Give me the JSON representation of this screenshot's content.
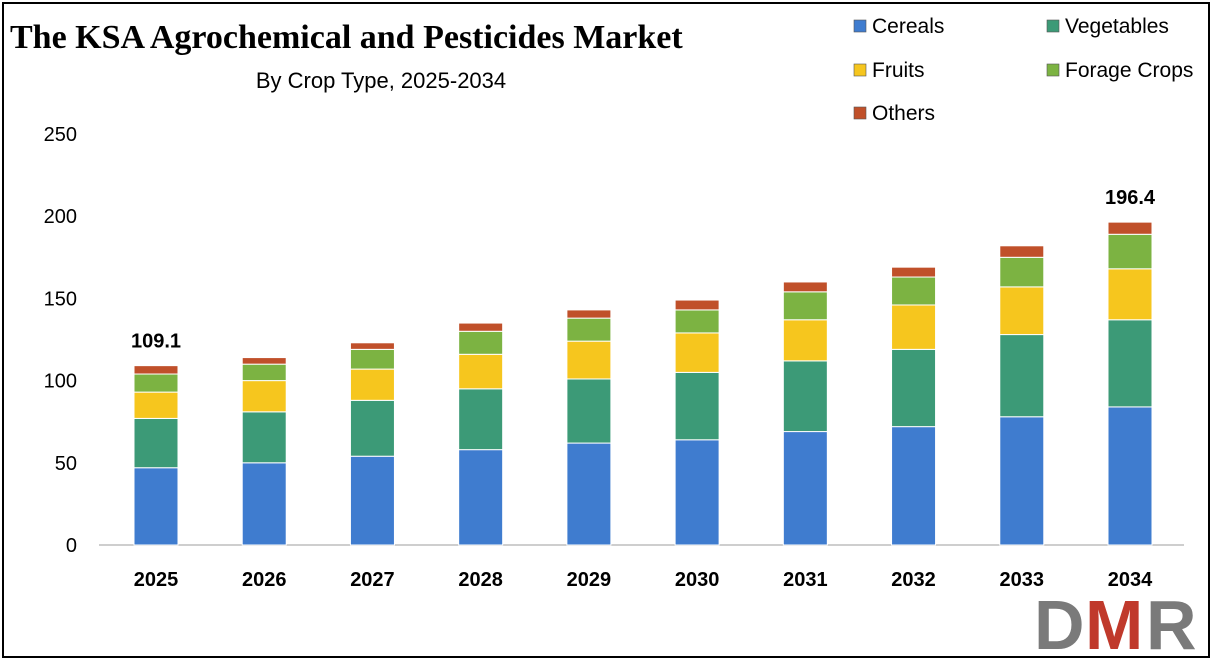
{
  "chart_data": {
    "type": "bar",
    "stacked": true,
    "title": "The KSA Agrochemical and Pesticides Market",
    "subtitle": "By Crop Type, 2025-2034",
    "xlabel": "",
    "ylabel": "",
    "ylim": [
      0,
      250
    ],
    "yticks": [
      0,
      50,
      100,
      150,
      200,
      250
    ],
    "grid": false,
    "legend_placement": "top-right",
    "categories": [
      "2025",
      "2026",
      "2027",
      "2028",
      "2029",
      "2030",
      "2031",
      "2032",
      "2033",
      "2034"
    ],
    "series": [
      {
        "name": "Cereals",
        "color": "#3f7ccf",
        "values": [
          47,
          50,
          54,
          58,
          62,
          64,
          69,
          72,
          78,
          84
        ]
      },
      {
        "name": "Vegetables",
        "color": "#3c9a77",
        "values": [
          30,
          31,
          34,
          37,
          39,
          41,
          43,
          47,
          50,
          53
        ]
      },
      {
        "name": "Fruits",
        "color": "#f6c61e",
        "values": [
          16,
          19,
          19,
          21,
          23,
          24,
          25,
          27,
          29,
          31
        ]
      },
      {
        "name": "Forage Crops",
        "color": "#7cb342",
        "values": [
          11,
          10,
          12,
          14,
          14,
          14,
          17,
          17,
          18,
          21
        ]
      },
      {
        "name": "Others",
        "color": "#c0502a",
        "values": [
          5.1,
          4,
          4,
          5,
          5,
          6,
          6,
          6,
          7,
          7.4
        ]
      }
    ],
    "annotations": [
      {
        "category": "2025",
        "text": "109.1"
      },
      {
        "category": "2034",
        "text": "196.4"
      }
    ]
  },
  "logo": {
    "text": "DMR",
    "color_gray": "#7a7a7a",
    "color_red": "#c0392b"
  }
}
